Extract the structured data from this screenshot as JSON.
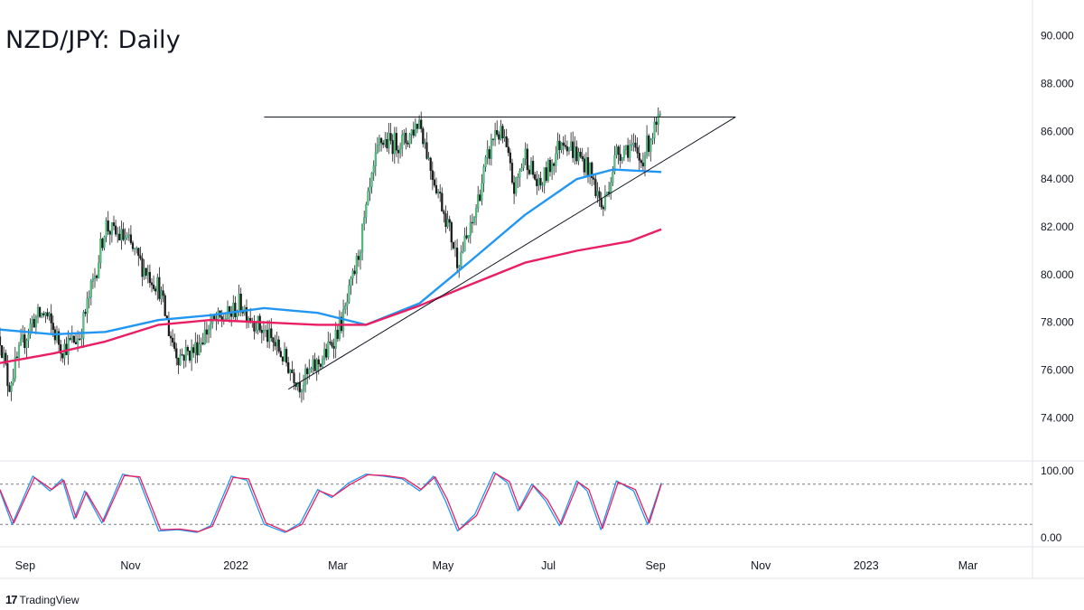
{
  "chart_data": {
    "type": "candlestick",
    "title": "NZD/JPY: Daily",
    "y_axis_ticks": [
      "90.000",
      "88.000",
      "86.000",
      "84.000",
      "82.000",
      "80.000",
      "78.000",
      "76.000",
      "74.000"
    ],
    "ylim": [
      72.2,
      91.5
    ],
    "x_axis_ticks": [
      "Sep",
      "Nov",
      "2022",
      "Mar",
      "May",
      "Jul",
      "Sep",
      "Nov",
      "2023",
      "Mar"
    ],
    "price_anchors": {
      "x": [
        "2021-08-20",
        "2021-08-25",
        "2021-09-01",
        "2021-09-08",
        "2021-09-15",
        "2021-09-25",
        "2021-10-05",
        "2021-10-15",
        "2021-10-20",
        "2021-10-25",
        "2021-11-01",
        "2021-11-10",
        "2021-11-20",
        "2021-11-26",
        "2021-12-01",
        "2021-12-10",
        "2021-12-20",
        "2021-12-31",
        "2022-01-06",
        "2022-01-15",
        "2022-01-28",
        "2022-02-10",
        "2022-02-25",
        "2022-03-07",
        "2022-03-15",
        "2022-03-22",
        "2022-03-28",
        "2022-04-05",
        "2022-04-12",
        "2022-04-20",
        "2022-04-26",
        "2022-05-05",
        "2022-05-12",
        "2022-05-20",
        "2022-05-27",
        "2022-06-03",
        "2022-06-08",
        "2022-06-14",
        "2022-06-20",
        "2022-06-28",
        "2022-07-05",
        "2022-07-12",
        "2022-07-20",
        "2022-07-26",
        "2022-08-01",
        "2022-08-04",
        "2022-08-12",
        "2022-08-20",
        "2022-08-26",
        "2022-09-01",
        "2022-09-07"
      ],
      "close": [
        77.4,
        75.3,
        76.9,
        78.1,
        78.4,
        76.9,
        77.4,
        80.3,
        82.1,
        81.7,
        81.5,
        80.4,
        79.5,
        77.6,
        76.6,
        76.8,
        77.9,
        78.3,
        78.8,
        78.0,
        76.9,
        75.4,
        76.7,
        78.2,
        80.6,
        83.4,
        85.6,
        85.5,
        85.6,
        86.5,
        84.6,
        82.5,
        80.6,
        81.9,
        84.2,
        86.1,
        85.6,
        83.5,
        85.1,
        83.6,
        84.6,
        85.8,
        85.0,
        84.6,
        83.4,
        82.7,
        85.1,
        85.4,
        84.7,
        85.8,
        86.5
      ]
    },
    "moving_averages": [
      {
        "color": "#2196f3",
        "x": [
          "2021-08-20",
          "2021-09-20",
          "2021-10-20",
          "2021-11-20",
          "2021-12-20",
          "2022-01-20",
          "2022-02-20",
          "2022-03-20",
          "2022-04-20",
          "2022-05-20",
          "2022-06-20",
          "2022-07-20",
          "2022-08-10",
          "2022-09-07"
        ],
        "y": [
          77.7,
          77.5,
          77.6,
          78.1,
          78.3,
          78.6,
          78.4,
          77.9,
          78.8,
          80.6,
          82.5,
          84.0,
          84.4,
          84.3
        ]
      },
      {
        "color": "#e91e63",
        "x": [
          "2021-08-20",
          "2021-09-20",
          "2021-10-20",
          "2021-11-20",
          "2021-12-20",
          "2022-01-20",
          "2022-02-20",
          "2022-03-20",
          "2022-04-20",
          "2022-05-20",
          "2022-06-20",
          "2022-07-20",
          "2022-08-20",
          "2022-09-07"
        ],
        "y": [
          76.3,
          76.7,
          77.2,
          77.9,
          78.1,
          78.0,
          77.9,
          77.9,
          78.7,
          79.6,
          80.5,
          81.0,
          81.4,
          81.9
        ]
      }
    ],
    "trendlines": [
      {
        "color": "#131722",
        "x": [
          "2022-01-20",
          "2022-10-20"
        ],
        "y": [
          86.6,
          86.6
        ]
      },
      {
        "color": "#131722",
        "x": [
          "2022-02-03",
          "2022-10-20"
        ],
        "y": [
          75.2,
          86.6
        ]
      }
    ],
    "oscillator": {
      "axis_ticks": [
        "100.00",
        "0.00"
      ],
      "ylim": [
        0,
        100
      ],
      "levels": [
        80,
        20
      ],
      "series": [
        {
          "color": "#2196f3",
          "x": [
            "2021-08-20",
            "2021-08-27",
            "2021-09-08",
            "2021-09-18",
            "2021-09-25",
            "2021-10-02",
            "2021-10-08",
            "2021-10-18",
            "2021-10-30",
            "2021-11-08",
            "2021-11-20",
            "2021-12-01",
            "2021-12-12",
            "2021-12-20",
            "2022-01-01",
            "2022-01-10",
            "2022-01-20",
            "2022-02-01",
            "2022-02-10",
            "2022-02-20",
            "2022-02-28",
            "2022-03-10",
            "2022-03-20",
            "2022-03-30",
            "2022-04-10",
            "2022-04-20",
            "2022-04-28",
            "2022-05-05",
            "2022-05-12",
            "2022-05-22",
            "2022-06-02",
            "2022-06-10",
            "2022-06-16",
            "2022-06-24",
            "2022-07-02",
            "2022-07-10",
            "2022-07-20",
            "2022-07-26",
            "2022-08-03",
            "2022-08-12",
            "2022-08-22",
            "2022-08-30",
            "2022-09-07"
          ],
          "y": [
            70,
            20,
            92,
            70,
            88,
            28,
            70,
            22,
            95,
            90,
            10,
            12,
            8,
            18,
            92,
            86,
            20,
            8,
            22,
            72,
            60,
            82,
            95,
            92,
            88,
            70,
            92,
            55,
            10,
            35,
            98,
            82,
            40,
            80,
            55,
            18,
            85,
            70,
            12,
            85,
            70,
            20,
            82
          ]
        },
        {
          "color": "#e91e63",
          "x": [
            "2021-08-20",
            "2021-08-28",
            "2021-09-09",
            "2021-09-19",
            "2021-09-26",
            "2021-10-03",
            "2021-10-09",
            "2021-10-19",
            "2021-10-31",
            "2021-11-09",
            "2021-11-21",
            "2021-12-02",
            "2021-12-13",
            "2021-12-21",
            "2022-01-02",
            "2022-01-11",
            "2022-01-21",
            "2022-02-02",
            "2022-02-11",
            "2022-02-21",
            "2022-03-01",
            "2022-03-11",
            "2022-03-21",
            "2022-03-31",
            "2022-04-11",
            "2022-04-21",
            "2022-04-29",
            "2022-05-06",
            "2022-05-13",
            "2022-05-23",
            "2022-06-03",
            "2022-06-11",
            "2022-06-17",
            "2022-06-25",
            "2022-07-03",
            "2022-07-11",
            "2022-07-21",
            "2022-07-27",
            "2022-08-04",
            "2022-08-13",
            "2022-08-23",
            "2022-08-31",
            "2022-09-07"
          ],
          "y": [
            72,
            22,
            90,
            72,
            86,
            30,
            68,
            24,
            93,
            91,
            12,
            13,
            9,
            17,
            90,
            88,
            22,
            9,
            20,
            70,
            62,
            80,
            94,
            93,
            89,
            72,
            91,
            58,
            12,
            33,
            96,
            84,
            42,
            78,
            57,
            20,
            83,
            72,
            14,
            83,
            72,
            22,
            80
          ]
        }
      ]
    }
  },
  "branding": {
    "logo_text": "17",
    "name": "TradingView"
  }
}
